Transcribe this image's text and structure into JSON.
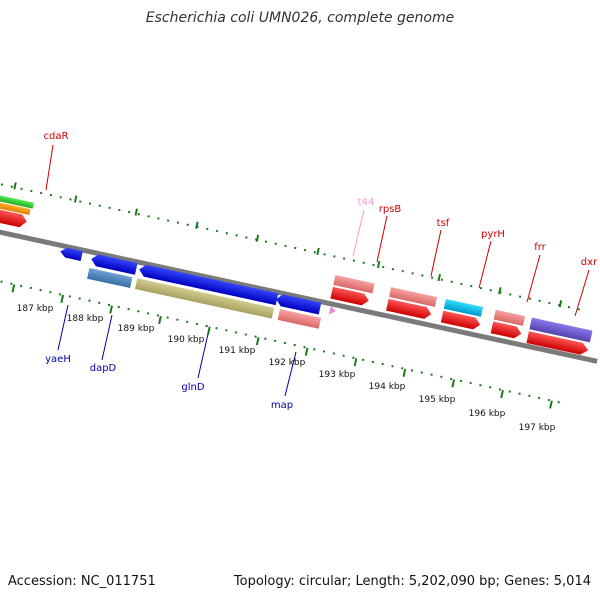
{
  "title": "Escherichia coli UMN026, complete genome",
  "footer": {
    "accession": "Accession: NC_011751",
    "summary": "Topology: circular; Length: 5,202,090 bp; Genes: 5,014"
  },
  "colors": {
    "backbone": "#808080",
    "tick_green": "#1a7a1a",
    "label_red": "#cc0000",
    "label_blue": "#0000aa",
    "label_pink": "#ff99cc"
  },
  "scale_labels": [
    "187 kbp",
    "188 kbp",
    "189 kbp",
    "190 kbp",
    "191 kbp",
    "192 kbp",
    "193 kbp",
    "194 kbp",
    "195 kbp",
    "196 kbp",
    "197 kbp"
  ],
  "gene_labels_top": [
    {
      "name": "cdaR",
      "color": "#cc0000"
    },
    {
      "name": "t44",
      "color": "#ff99cc"
    },
    {
      "name": "rpsB",
      "color": "#cc0000"
    },
    {
      "name": "tsf",
      "color": "#cc0000"
    },
    {
      "name": "pyrH",
      "color": "#cc0000"
    },
    {
      "name": "frr",
      "color": "#cc0000"
    },
    {
      "name": "dxr",
      "color": "#cc0000"
    }
  ],
  "gene_labels_bottom": [
    {
      "name": "yaeH",
      "color": "#0000aa"
    },
    {
      "name": "dapD",
      "color": "#0000aa"
    },
    {
      "name": "glnD",
      "color": "#0000aa"
    },
    {
      "name": "map",
      "color": "#0000aa"
    }
  ]
}
